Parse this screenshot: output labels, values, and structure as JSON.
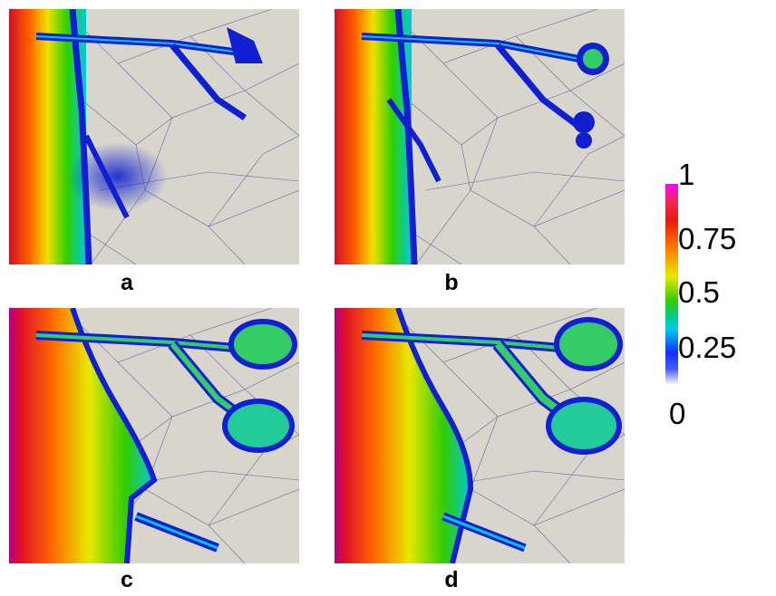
{
  "panels": [
    {
      "id": "a",
      "label": "a"
    },
    {
      "id": "b",
      "label": "b"
    },
    {
      "id": "c",
      "label": "c"
    },
    {
      "id": "d",
      "label": "d"
    }
  ],
  "colorbar": {
    "ticks": [
      "1",
      "0.75",
      "0.5",
      "0.25",
      "0"
    ],
    "colors": [
      "#ff00ff",
      "#e8180c",
      "#ff7a00",
      "#e8e800",
      "#33cc00",
      "#00ccee",
      "#1030ff",
      "#ffffff"
    ]
  },
  "colors": {
    "background": "#d8d5cd",
    "mesh": "#4a4f9a",
    "crack_edge": "#1020d0",
    "crack_fill": "#22cc66"
  }
}
